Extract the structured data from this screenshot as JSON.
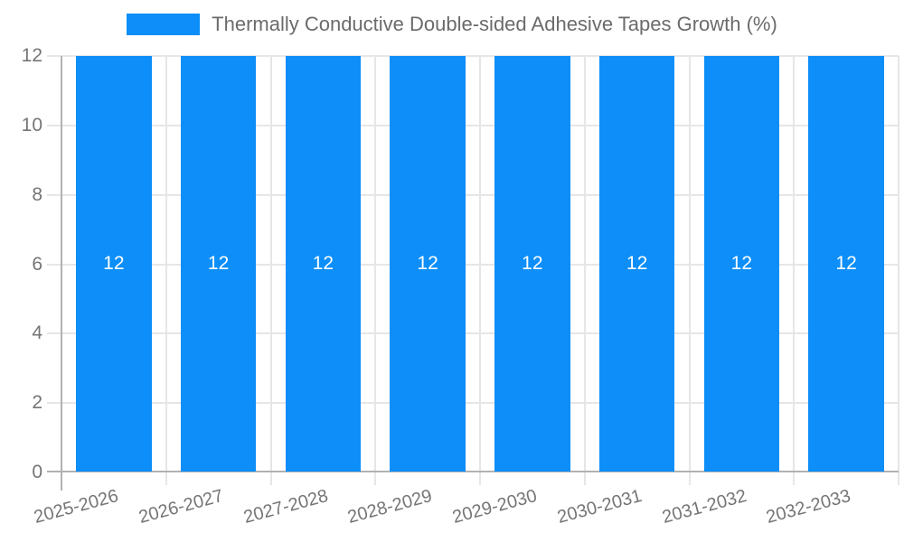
{
  "chart_data": {
    "type": "bar",
    "title": "Thermally Conductive Double-sided Adhesive Tapes Growth (%)",
    "legend": {
      "position": "top",
      "entries": [
        {
          "label": "Thermally Conductive Double-sided Adhesive Tapes Growth (%)",
          "color": "#0d8ef8"
        }
      ]
    },
    "categories": [
      "2025-2026",
      "2026-2027",
      "2027-2028",
      "2028-2029",
      "2029-2030",
      "2030-2031",
      "2031-2032",
      "2032-2033"
    ],
    "series": [
      {
        "name": "Thermally Conductive Double-sided Adhesive Tapes Growth (%)",
        "values": [
          12,
          12,
          12,
          12,
          12,
          12,
          12,
          12
        ]
      }
    ],
    "bar_value_labels": [
      "12",
      "12",
      "12",
      "12",
      "12",
      "12",
      "12",
      "12"
    ],
    "xlabel": "",
    "ylabel": "",
    "ylim": [
      0,
      12
    ],
    "yticks": [
      0,
      2,
      4,
      6,
      8,
      10,
      12
    ],
    "grid": true,
    "x_label_rotation_deg": -15,
    "colors": {
      "bar": "#0d8ef8",
      "bar_label": "#ffffff",
      "gridline": "#e6e6e6",
      "axis": "#b2b2b2",
      "tick_label": "#757575",
      "legend_text": "#6b6b6b",
      "background": "#ffffff"
    }
  }
}
